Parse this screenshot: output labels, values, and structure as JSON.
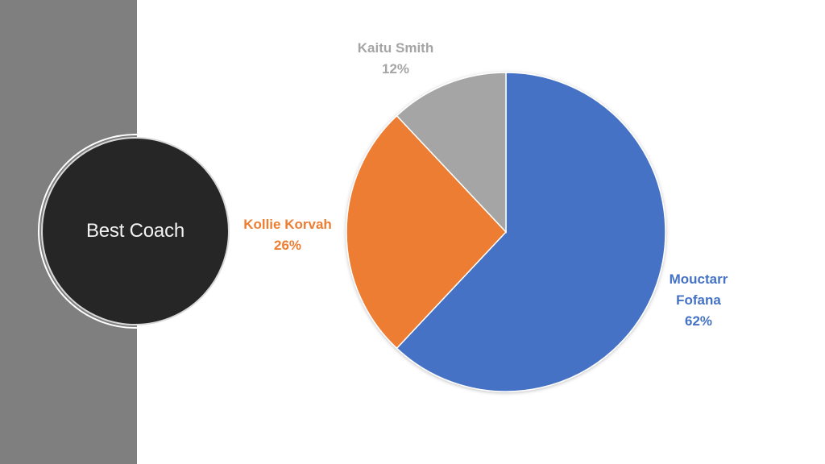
{
  "title": "Best Coach",
  "colors": {
    "left_panel": "#7f7f7f",
    "circle_fill": "#262626"
  },
  "chart_data": {
    "type": "pie",
    "title": "",
    "slices": [
      {
        "label_lines": [
          "Mouctarr",
          "Fofana"
        ],
        "value": 62,
        "display": "62%",
        "color": "#4472c4"
      },
      {
        "label_lines": [
          "Kollie Korvah"
        ],
        "value": 26,
        "display": "26%",
        "color": "#ed7d31"
      },
      {
        "label_lines": [
          "Kaitu Smith"
        ],
        "value": 12,
        "display": "12%",
        "color": "#a5a5a5"
      }
    ],
    "start": "12 o'clock",
    "direction": "clockwise",
    "labels": "outside, colored by slice"
  }
}
